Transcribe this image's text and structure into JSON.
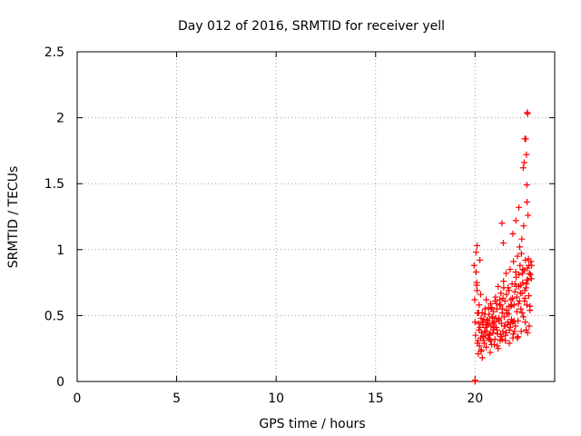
{
  "chart_data": {
    "type": "scatter",
    "title": "Day 012 of 2016, SRMTID for receiver yell",
    "xlabel": "GPS time / hours",
    "ylabel": "SRMTID / TECUs",
    "xlim": [
      0,
      24
    ],
    "ylim": [
      0,
      2.5
    ],
    "xticks": [
      0,
      5,
      10,
      15,
      20
    ],
    "yticks": [
      0,
      0.5,
      1,
      1.5,
      2,
      2.5
    ],
    "grid": true,
    "marker": "+",
    "color": "#ff0000",
    "series": [
      {
        "name": "SRMTID",
        "x": [
          19.95,
          19.98,
          20.0,
          20.02,
          20.05,
          20.08,
          20.1,
          20.12,
          20.15,
          20.18,
          20.2,
          20.22,
          20.25,
          20.28,
          20.3,
          20.33,
          20.36,
          20.4,
          20.43,
          20.46,
          20.5,
          20.53,
          20.56,
          20.6,
          20.63,
          20.66,
          20.7,
          20.72,
          20.75,
          20.78,
          20.8,
          20.83,
          20.86,
          20.9,
          20.93,
          20.96,
          21.0,
          21.03,
          21.06,
          21.1,
          21.13,
          21.16,
          21.2,
          21.23,
          21.26,
          21.3,
          21.33,
          21.36,
          21.4,
          21.43,
          21.46,
          21.5,
          21.53,
          21.56,
          21.6,
          21.63,
          21.66,
          21.7,
          21.73,
          21.76,
          21.8,
          21.83,
          21.86,
          21.9,
          21.93,
          21.96,
          22.0,
          22.03,
          22.06,
          22.1,
          22.13,
          22.16,
          22.2,
          22.23,
          22.26,
          22.3,
          22.33,
          22.36,
          22.4,
          22.43,
          22.46,
          22.5,
          22.53,
          22.56,
          22.6,
          22.63,
          22.66,
          22.7,
          22.73,
          22.76,
          22.8,
          22.83,
          20.05,
          20.1,
          20.2,
          20.3,
          20.4,
          20.5,
          20.6,
          20.7,
          20.8,
          20.9,
          21.0,
          21.1,
          21.2,
          21.3,
          21.4,
          21.5,
          21.6,
          21.7,
          21.8,
          21.9,
          22.0,
          22.1,
          22.2,
          22.3,
          22.4,
          22.5,
          22.6,
          22.7,
          20.08,
          20.18,
          20.28,
          20.38,
          20.48,
          20.58,
          20.68,
          20.78,
          20.88,
          20.98,
          21.08,
          21.18,
          21.28,
          21.38,
          21.48,
          21.58,
          21.68,
          21.78,
          21.88,
          21.98,
          22.08,
          22.18,
          22.28,
          22.38,
          22.48,
          22.58,
          22.68,
          22.78,
          20.12,
          20.32,
          20.52,
          20.72,
          20.92,
          21.12,
          21.32,
          21.52,
          21.72,
          21.92,
          22.12,
          22.32,
          22.52,
          22.72,
          20.16,
          20.36,
          20.56,
          20.76,
          20.96,
          21.16,
          21.36,
          21.56,
          21.76,
          21.96,
          22.16,
          22.36,
          22.56,
          22.76,
          20.24,
          20.44,
          20.64,
          20.84,
          21.04,
          21.24,
          21.44,
          21.64,
          21.84,
          22.04,
          22.24,
          22.44,
          22.64,
          22.84,
          20.0,
          20.0,
          22.62,
          22.64,
          22.5,
          22.55,
          22.58,
          22.42,
          22.47,
          22.6,
          22.61,
          22.66,
          21.35,
          21.42,
          21.9,
          22.05,
          22.2,
          22.35
        ],
        "y": [
          0.88,
          0.62,
          0.45,
          0.35,
          0.98,
          0.75,
          1.03,
          0.52,
          0.31,
          0.44,
          0.58,
          0.27,
          0.41,
          0.66,
          0.23,
          0.37,
          0.52,
          0.34,
          0.47,
          0.29,
          0.55,
          0.41,
          0.62,
          0.38,
          0.46,
          0.33,
          0.51,
          0.44,
          0.36,
          0.59,
          0.42,
          0.28,
          0.48,
          0.37,
          0.53,
          0.45,
          0.32,
          0.64,
          0.41,
          0.55,
          0.36,
          0.72,
          0.48,
          0.58,
          0.31,
          0.67,
          0.44,
          0.52,
          0.38,
          0.76,
          0.49,
          0.61,
          0.35,
          0.82,
          0.54,
          0.43,
          0.71,
          0.57,
          0.39,
          0.85,
          0.62,
          0.47,
          0.74,
          0.33,
          0.91,
          0.58,
          0.68,
          0.42,
          0.79,
          0.53,
          0.95,
          0.46,
          0.72,
          0.61,
          0.88,
          0.55,
          0.97,
          0.67,
          0.75,
          0.49,
          0.84,
          0.63,
          0.92,
          0.71,
          0.58,
          0.86,
          0.77,
          0.65,
          0.82,
          0.54,
          0.91,
          0.78,
          0.83,
          0.69,
          0.39,
          0.48,
          0.43,
          0.51,
          0.47,
          0.35,
          0.55,
          0.44,
          0.61,
          0.39,
          0.46,
          0.58,
          0.63,
          0.42,
          0.52,
          0.69,
          0.57,
          0.45,
          0.74,
          0.64,
          0.81,
          0.73,
          0.85,
          0.69,
          0.77,
          0.88,
          0.73,
          0.52,
          0.33,
          0.45,
          0.38,
          0.43,
          0.56,
          0.31,
          0.49,
          0.41,
          0.59,
          0.47,
          0.36,
          0.55,
          0.42,
          0.66,
          0.51,
          0.44,
          0.63,
          0.38,
          0.72,
          0.59,
          0.67,
          0.82,
          0.61,
          0.74,
          0.93,
          0.81,
          0.29,
          0.24,
          0.35,
          0.32,
          0.39,
          0.27,
          0.34,
          0.31,
          0.29,
          0.36,
          0.33,
          0.38,
          0.45,
          0.42,
          0.21,
          0.18,
          0.26,
          0.22,
          0.28,
          0.25,
          0.32,
          0.37,
          0.41,
          0.46,
          0.34,
          0.52,
          0.39,
          0.57,
          0.92,
          0.31,
          0.44,
          0.56,
          0.48,
          0.62,
          0.71,
          0.45,
          0.58,
          0.83,
          1.02,
          1.18,
          0.37,
          0.88,
          0.01,
          0.0,
          2.04,
          2.03,
          1.84,
          1.84,
          1.72,
          1.62,
          1.66,
          1.49,
          1.36,
          1.26,
          1.2,
          1.05,
          1.12,
          1.22,
          1.32,
          1.08
        ]
      }
    ]
  }
}
